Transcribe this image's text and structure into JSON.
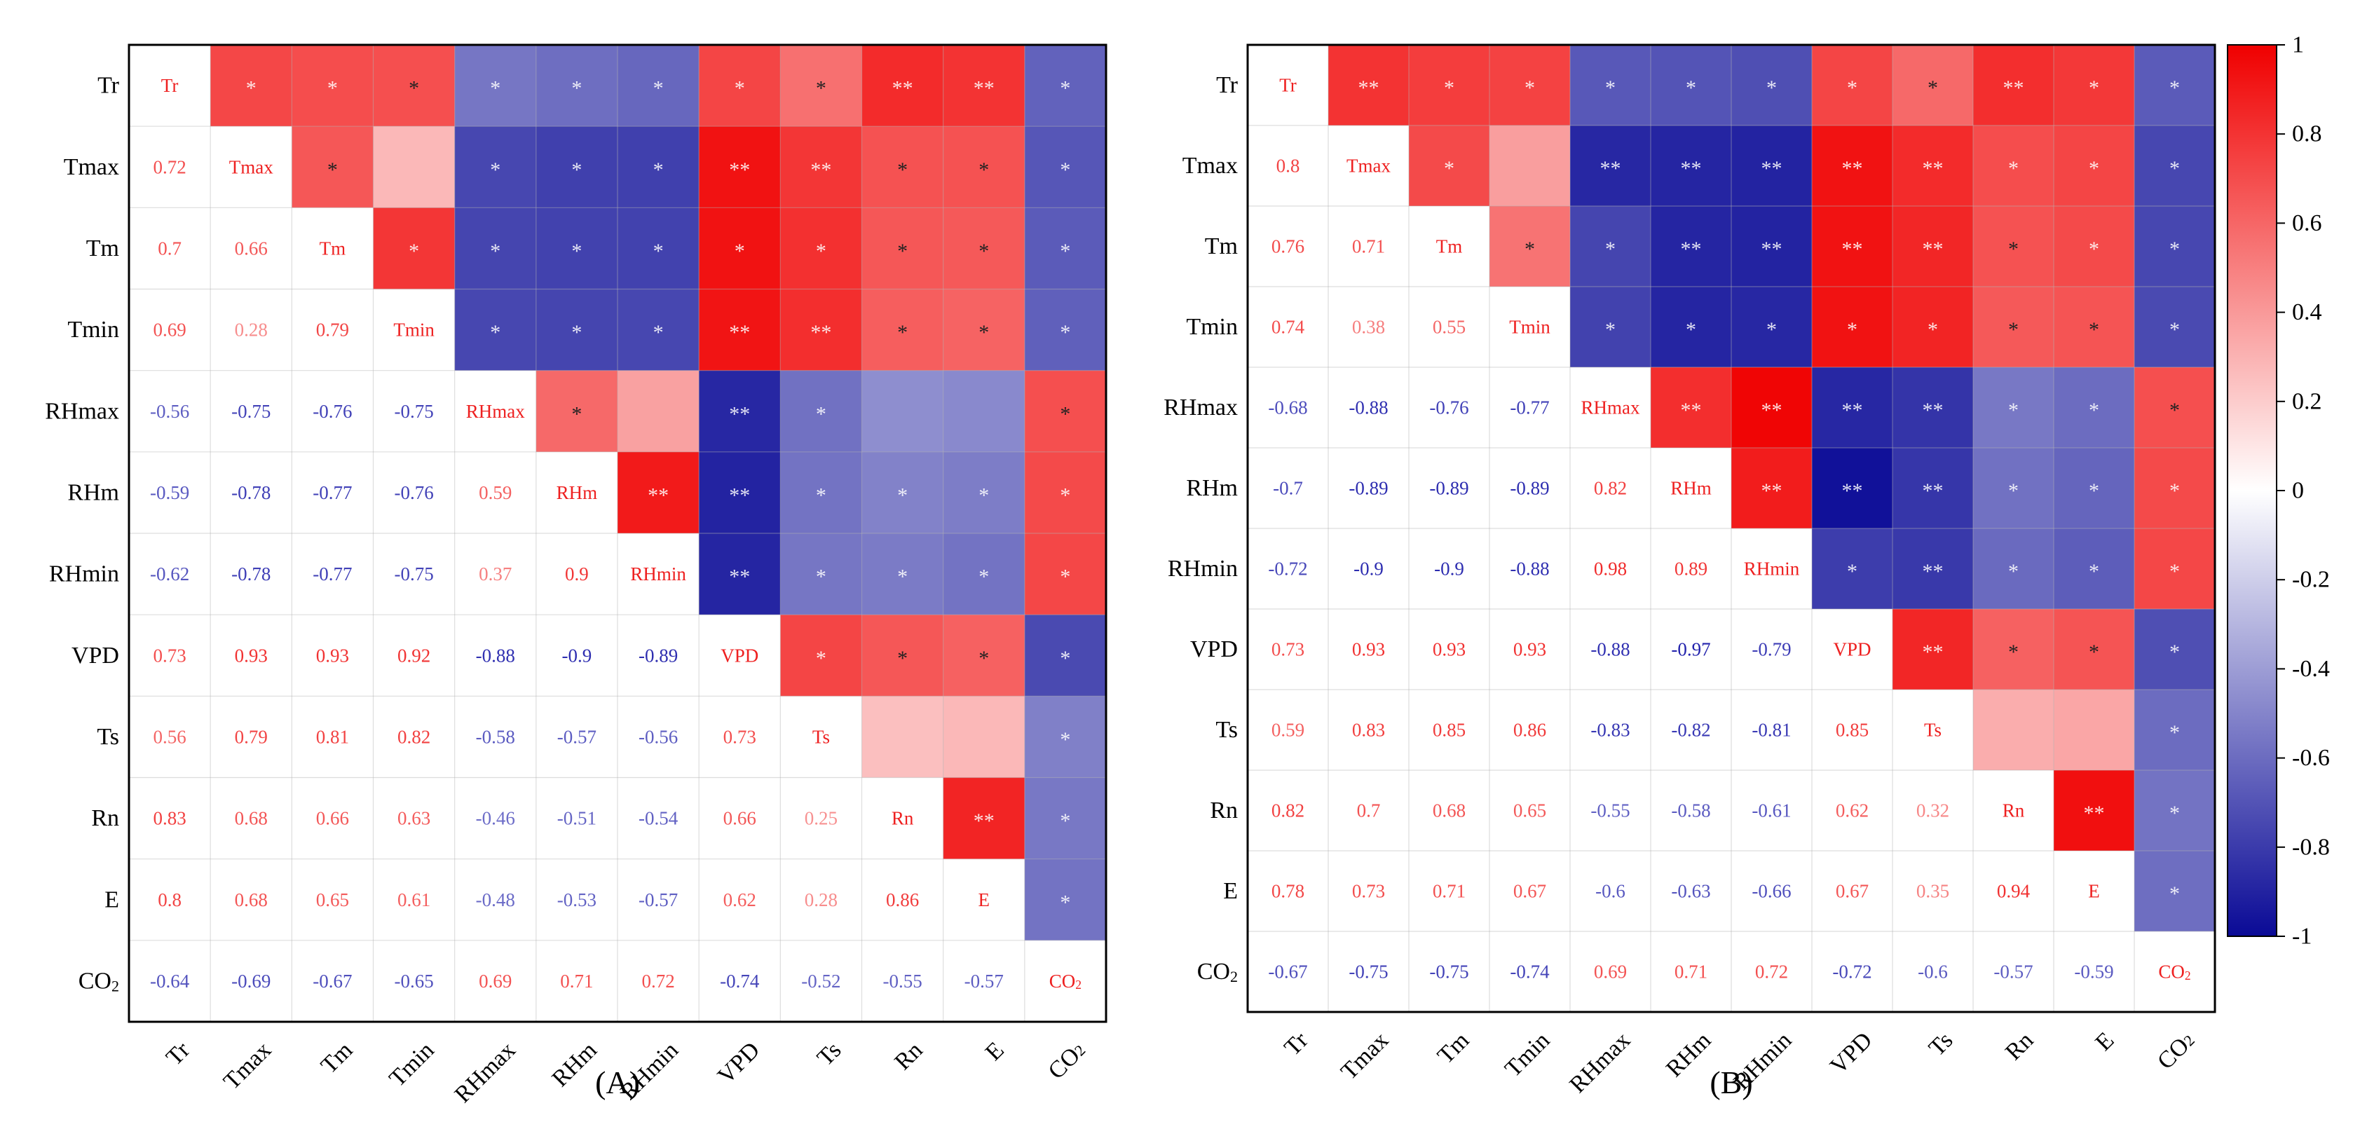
{
  "chart_data": [
    {
      "type": "heatmap",
      "title": "",
      "panel_label": "(A)",
      "variables": [
        "Tr",
        "Tmax",
        "Tm",
        "Tmin",
        "RHmax",
        "RHm",
        "RHmin",
        "VPD",
        "Ts",
        "Rn",
        "E",
        "CO2"
      ],
      "tick_labels": [
        "Tr",
        "Tmax",
        "Tm",
        "Tmin",
        "RHmax",
        "RHm",
        "RHmin",
        "VPD",
        "Ts",
        "Rn",
        "E",
        "CO₂"
      ],
      "lower_triangle_values": [
        [],
        [
          0.72
        ],
        [
          0.7,
          0.66
        ],
        [
          0.69,
          0.28,
          0.79
        ],
        [
          -0.56,
          -0.75,
          -0.76,
          -0.75
        ],
        [
          -0.59,
          -0.78,
          -0.77,
          -0.76,
          0.59
        ],
        [
          -0.62,
          -0.78,
          -0.77,
          -0.75,
          0.37,
          0.9
        ],
        [
          0.73,
          0.93,
          0.93,
          0.92,
          -0.88,
          -0.9,
          -0.89
        ],
        [
          0.56,
          0.79,
          0.81,
          0.82,
          -0.58,
          -0.57,
          -0.56,
          0.73
        ],
        [
          0.83,
          0.68,
          0.66,
          0.63,
          -0.46,
          -0.51,
          -0.54,
          0.66,
          0.25
        ],
        [
          0.8,
          0.68,
          0.65,
          0.61,
          -0.48,
          -0.53,
          -0.57,
          0.62,
          0.28,
          0.86
        ],
        [
          -0.64,
          -0.69,
          -0.67,
          -0.65,
          0.69,
          0.71,
          0.72,
          -0.74,
          -0.52,
          -0.55,
          -0.57
        ]
      ],
      "upper_triangle_significance": [
        [
          "*",
          "*",
          "*",
          "*",
          "*",
          "*",
          "*",
          "*",
          "**",
          "**",
          "*"
        ],
        [
          "*",
          "",
          "*",
          "*",
          "*",
          "**",
          "**",
          "*",
          "*",
          "*"
        ],
        [
          "*",
          "*",
          "*",
          "*",
          "*",
          "*",
          "*",
          "*",
          "*"
        ],
        [
          "*",
          "*",
          "*",
          "**",
          "**",
          "*",
          "*",
          "*"
        ],
        [
          "*",
          "",
          "**",
          "*",
          "",
          "",
          "*"
        ],
        [
          "**",
          "**",
          "*",
          "*",
          "*",
          "*"
        ],
        [
          "**",
          "*",
          "*",
          "*",
          "*"
        ],
        [
          "*",
          "*",
          "*",
          "*"
        ],
        [
          "",
          "",
          "*"
        ],
        [
          "**",
          "*"
        ],
        [
          "*"
        ]
      ]
    },
    {
      "type": "heatmap",
      "title": "",
      "panel_label": "(B)",
      "variables": [
        "Tr",
        "Tmax",
        "Tm",
        "Tmin",
        "RHmax",
        "RHm",
        "RHmin",
        "VPD",
        "Ts",
        "Rn",
        "E",
        "CO2"
      ],
      "tick_labels": [
        "Tr",
        "Tmax",
        "Tm",
        "Tmin",
        "RHmax",
        "RHm",
        "RHmin",
        "VPD",
        "Ts",
        "Rn",
        "E",
        "CO₂"
      ],
      "lower_triangle_values": [
        [],
        [
          0.8
        ],
        [
          0.76,
          0.71
        ],
        [
          0.74,
          0.38,
          0.55
        ],
        [
          -0.68,
          -0.88,
          -0.76,
          -0.77
        ],
        [
          -0.7,
          -0.89,
          -0.89,
          -0.89,
          0.82
        ],
        [
          -0.72,
          -0.9,
          -0.9,
          -0.88,
          0.98,
          0.89
        ],
        [
          0.73,
          0.93,
          0.93,
          0.93,
          -0.88,
          -0.97,
          -0.79
        ],
        [
          0.59,
          0.83,
          0.85,
          0.86,
          -0.83,
          -0.82,
          -0.81,
          0.85
        ],
        [
          0.82,
          0.7,
          0.68,
          0.65,
          -0.55,
          -0.58,
          -0.61,
          0.62,
          0.32
        ],
        [
          0.78,
          0.73,
          0.71,
          0.67,
          -0.6,
          -0.63,
          -0.66,
          0.67,
          0.35,
          0.94
        ],
        [
          -0.67,
          -0.75,
          -0.75,
          -0.74,
          0.69,
          0.71,
          0.72,
          -0.72,
          -0.6,
          -0.57,
          -0.59
        ]
      ],
      "upper_triangle_significance": [
        [
          "**",
          "*",
          "*",
          "*",
          "*",
          "*",
          "*",
          "*",
          "**",
          "*",
          "*"
        ],
        [
          "*",
          "",
          "**",
          "**",
          "**",
          "**",
          "**",
          "*",
          "*",
          "*"
        ],
        [
          "*",
          "*",
          "**",
          "**",
          "**",
          "**",
          "*",
          "*",
          "*"
        ],
        [
          "*",
          "*",
          "*",
          "*",
          "*",
          "*",
          "*",
          "*"
        ],
        [
          "**",
          "**",
          "**",
          "**",
          "*",
          "*",
          "*"
        ],
        [
          "**",
          "**",
          "**",
          "*",
          "*",
          "*"
        ],
        [
          "*",
          "**",
          "*",
          "*",
          "*"
        ],
        [
          "**",
          "*",
          "*",
          "*"
        ],
        [
          "",
          "",
          "*"
        ],
        [
          "**",
          "*"
        ],
        [
          "*"
        ]
      ]
    }
  ],
  "colorbar": {
    "range": [
      -1,
      1
    ],
    "ticks": [
      "1",
      "0.8",
      "0.6",
      "0.4",
      "0.2",
      "0",
      "-0.2",
      "-0.4",
      "-0.6",
      "-0.8",
      "-1"
    ],
    "colors": {
      "negative": "#0a0a96",
      "zero": "#ffffff",
      "positive": "#f00000"
    }
  }
}
